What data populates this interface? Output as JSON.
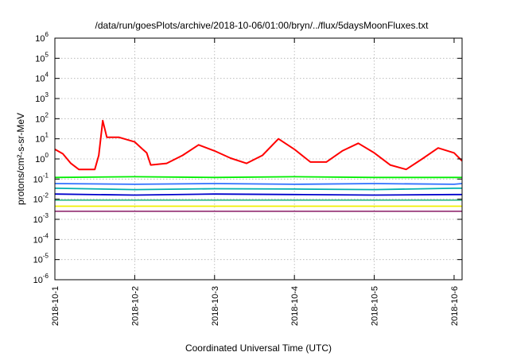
{
  "chart_data": {
    "type": "line",
    "title": "/data/run/goesPlots/archive/2018-10-06/01:00/bryn/../flux/5daysMoonFluxes.txt",
    "xlabel": "Coordinated Universal Time (UTC)",
    "ylabel": "protons/cm²-s-sr-MeV",
    "x_ticks": [
      "2018-10-1",
      "2018-10-2",
      "2018-10-3",
      "2018-10-4",
      "2018-10-5",
      "2018-10-6"
    ],
    "xlim_days": [
      0,
      5.1
    ],
    "y_scale": "log",
    "ylim": [
      1e-06,
      1000000.0
    ],
    "y_ticks": [
      {
        "base": "10",
        "exp": "-6",
        "value": 1e-06
      },
      {
        "base": "10",
        "exp": "-5",
        "value": 1e-05
      },
      {
        "base": "10",
        "exp": "-4",
        "value": 0.0001
      },
      {
        "base": "10",
        "exp": "-3",
        "value": 0.001
      },
      {
        "base": "10",
        "exp": "-2",
        "value": 0.01
      },
      {
        "base": "10",
        "exp": "-1",
        "value": 0.1
      },
      {
        "base": "10",
        "exp": "0",
        "value": 1
      },
      {
        "base": "10",
        "exp": "1",
        "value": 10
      },
      {
        "base": "10",
        "exp": "2",
        "value": 100
      },
      {
        "base": "10",
        "exp": "3",
        "value": 1000
      },
      {
        "base": "10",
        "exp": "4",
        "value": 10000
      },
      {
        "base": "10",
        "exp": "5",
        "value": 100000
      },
      {
        "base": "10",
        "exp": "6",
        "value": 1000000
      }
    ],
    "grid": true,
    "legend": "none",
    "series": [
      {
        "color": "#ff0000",
        "x": [
          0,
          0.1,
          0.2,
          0.3,
          0.4,
          0.5,
          0.55,
          0.6,
          0.65,
          0.8,
          1.0,
          1.1,
          1.15,
          1.2,
          1.4,
          1.6,
          1.8,
          2.0,
          2.2,
          2.4,
          2.6,
          2.8,
          3.0,
          3.2,
          3.4,
          3.6,
          3.8,
          4.0,
          4.2,
          4.4,
          4.6,
          4.8,
          5.0,
          5.1
        ],
        "values": [
          3,
          1.8,
          0.6,
          0.3,
          0.3,
          0.3,
          1.5,
          80,
          12,
          12,
          7,
          3,
          2,
          0.5,
          0.6,
          1.5,
          5,
          2.5,
          1.1,
          0.6,
          1.5,
          10,
          3,
          0.7,
          0.7,
          2.5,
          6,
          2,
          0.5,
          0.3,
          1.0,
          3.5,
          2,
          0.8
        ]
      },
      {
        "color": "#00ee00",
        "x": [
          0,
          1,
          2,
          3,
          4,
          5,
          5.1
        ],
        "values": [
          0.12,
          0.13,
          0.12,
          0.13,
          0.12,
          0.12,
          0.12
        ]
      },
      {
        "color": "#00b0b0",
        "x": [
          0,
          1,
          2,
          3,
          4,
          5,
          5.1
        ],
        "values": [
          0.035,
          0.03,
          0.033,
          0.032,
          0.03,
          0.035,
          0.035
        ]
      },
      {
        "color": "#3070ff",
        "x": [
          0,
          1,
          2,
          3,
          4,
          5,
          5.1
        ],
        "values": [
          0.06,
          0.055,
          0.06,
          0.055,
          0.06,
          0.055,
          0.06
        ]
      },
      {
        "color": "#0000cc",
        "x": [
          0,
          1,
          2,
          3,
          4,
          5,
          5.1
        ],
        "values": [
          0.018,
          0.016,
          0.018,
          0.017,
          0.016,
          0.017,
          0.017
        ]
      },
      {
        "color": "#40c090",
        "x": [
          0,
          1,
          2,
          3,
          4,
          5,
          5.1
        ],
        "values": [
          0.009,
          0.009,
          0.009,
          0.009,
          0.009,
          0.009,
          0.009
        ]
      },
      {
        "color": "#f0f000",
        "x": [
          0,
          1,
          2,
          3,
          4,
          5,
          5.1
        ],
        "values": [
          0.0045,
          0.0045,
          0.0045,
          0.0045,
          0.0045,
          0.0045,
          0.0045
        ]
      },
      {
        "color": "#993a7a",
        "x": [
          0,
          1,
          2,
          3,
          4,
          5,
          5.1
        ],
        "values": [
          0.0025,
          0.0025,
          0.0025,
          0.0025,
          0.0025,
          0.0025,
          0.0025
        ]
      }
    ]
  }
}
